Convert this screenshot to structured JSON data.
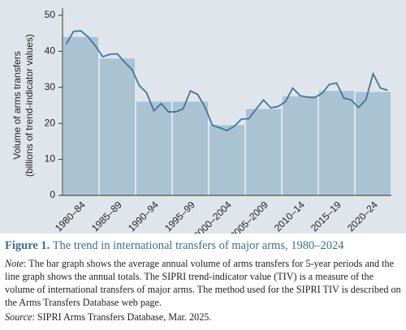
{
  "chart_data": {
    "type": "combo",
    "y_label": [
      "Volume of arms transfers",
      "(billions of trend-indicator values)"
    ],
    "ylim": [
      0,
      52
    ],
    "yticks": [
      0,
      10,
      20,
      30,
      40,
      50
    ],
    "xlim": [
      1979.5,
      2024.5
    ],
    "categories": [
      "1980–84",
      "1985–89",
      "1990–94",
      "1995–99",
      "2000–2004",
      "2005–2009",
      "2010–14",
      "2015–19",
      "2020–24"
    ],
    "bars": {
      "color": "#a9c3d3",
      "values": [
        44,
        38,
        26,
        26,
        19.5,
        24,
        27.5,
        29,
        28.7
      ]
    },
    "line": {
      "color": "#3d7799",
      "x": [
        1980,
        1981,
        1982,
        1983,
        1984,
        1985,
        1986,
        1987,
        1988,
        1989,
        1990,
        1991,
        1992,
        1993,
        1994,
        1995,
        1996,
        1997,
        1998,
        1999,
        2000,
        2001,
        2002,
        2003,
        2004,
        2005,
        2006,
        2007,
        2008,
        2009,
        2010,
        2011,
        2012,
        2013,
        2014,
        2015,
        2016,
        2017,
        2018,
        2019,
        2020,
        2021,
        2022,
        2023,
        2024
      ],
      "values": [
        42,
        45.5,
        45.7,
        44,
        41.5,
        38.5,
        39.2,
        39.3,
        37,
        35,
        30.5,
        28.5,
        23.5,
        25.5,
        23.2,
        23.2,
        24,
        29,
        28,
        24.5,
        19.5,
        18.8,
        18,
        19.2,
        21.2,
        21.3,
        24,
        26.5,
        24.3,
        24.7,
        26,
        29.8,
        27.7,
        27.3,
        27.2,
        28.3,
        30.8,
        31.2,
        27,
        26.5,
        24.4,
        26.5,
        33.8,
        29.8,
        29.2
      ]
    }
  },
  "figure": {
    "label": "Figure 1.",
    "title": "The trend in international transfers of major arms, 1980–2024"
  },
  "note": {
    "label": "Note",
    "text": ": The bar graph shows the average annual volume of arms transfers for 5-year periods and the line graph shows the annual totals. The SIPRI trend-indicator value (TIV) is a measure of the volume of international transfers of major arms. The method used for the SIPRI TIV is described on the Arms Transfers Database web page."
  },
  "source": {
    "label": "Source",
    "text": ": SIPRI Arms Transfers Database, Mar. 2025."
  }
}
